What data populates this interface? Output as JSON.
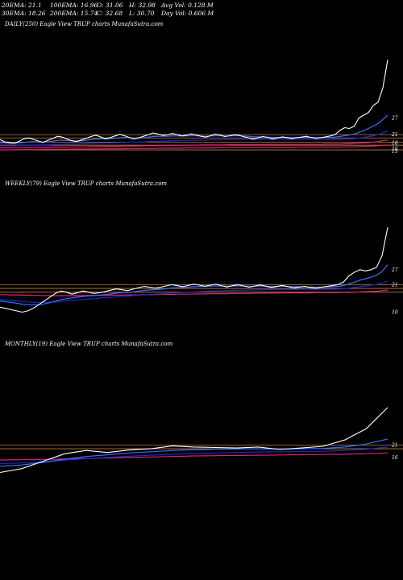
{
  "header": {
    "ema20": "20EMA: 21.1",
    "ema100": "100EMA: 16.96",
    "open": "O: 31.06",
    "high": "H: 32.98",
    "avgvol": "Avg Vol: 0.128  M",
    "ema30": "30EMA: 18.26",
    "ema200": "200EMA: 15.74",
    "close": "C: 32.68",
    "low": "L: 30.70",
    "dayvol": "Day Vol: 0.606  M"
  },
  "colors": {
    "background": "#000000",
    "price": "#ffffff",
    "ema_blue": "#3b6cff",
    "ema_dark_blue": "#1a2bc8",
    "ema_red": "#e0207a",
    "support_line": "#c08040",
    "text": "#ffffff"
  },
  "chart_data": [
    {
      "type": "line",
      "title": "DAILY(250) Eagle  View  TRUP charts MunafaSutra.com",
      "price_labels": [
        "27",
        "21",
        "18",
        "16",
        "15"
      ],
      "price_range": [
        10,
        55
      ],
      "support_levels": [
        15.5,
        17.2,
        18.3,
        19.8,
        21.0
      ],
      "series": [
        {
          "values": [
            19.2,
            18.4,
            18.1,
            17.9,
            18.6,
            19.5,
            19.8,
            19.3,
            18.7,
            18.2,
            18.9,
            19.6,
            20.4,
            20.1,
            19.4,
            18.8,
            18.5,
            19.1,
            19.7,
            20.3,
            20.8,
            20.2,
            19.6,
            19.9,
            20.5,
            21.1,
            20.6,
            20.0,
            19.4,
            19.8,
            20.4,
            21.0,
            21.6,
            21.2,
            20.7,
            20.9,
            21.4,
            21.0,
            20.5,
            20.8,
            21.3,
            20.9,
            20.4,
            20.1,
            20.6,
            21.2,
            20.8,
            20.3,
            20.6,
            21.0,
            20.7,
            20.2,
            19.8,
            19.4,
            19.9,
            20.3,
            19.9,
            19.5,
            19.8,
            20.2,
            19.9,
            19.6,
            19.9,
            20.1,
            20.4,
            20.0,
            19.7,
            19.9,
            20.2,
            20.5,
            21.0,
            22.5,
            23.5,
            23.2,
            24.0,
            27.0,
            28.0,
            29.0,
            31.5,
            32.7,
            38.0,
            48.0
          ]
        },
        {
          "values": [
            18.0,
            18.0,
            17.9,
            17.9,
            18.0,
            18.2,
            18.4,
            18.5,
            18.4,
            18.3,
            18.4,
            18.6,
            18.9,
            19.0,
            18.9,
            18.8,
            18.7,
            18.8,
            19.0,
            19.2,
            19.4,
            19.5,
            19.4,
            19.5,
            19.7,
            19.9,
            20.0,
            19.9,
            19.8,
            19.8,
            19.9,
            20.1,
            20.3,
            20.4,
            20.4,
            20.4,
            20.5,
            20.5,
            20.5,
            20.5,
            20.6,
            20.6,
            20.5,
            20.4,
            20.5,
            20.6,
            20.6,
            20.5,
            20.5,
            20.6,
            20.6,
            20.5,
            20.4,
            20.2,
            20.2,
            20.2,
            20.1,
            20.0,
            20.0,
            20.0,
            20.0,
            19.9,
            19.9,
            19.9,
            20.0,
            20.0,
            19.9,
            19.9,
            20.0,
            20.0,
            20.1,
            20.3,
            20.6,
            20.9,
            21.2,
            21.8,
            22.5,
            23.2,
            24.1,
            25.0,
            26.5,
            28.0
          ]
        },
        {
          "values": [
            17.0,
            17.0,
            17.0,
            17.0,
            17.1,
            17.1,
            17.2,
            17.2,
            17.3,
            17.3,
            17.3,
            17.4,
            17.5,
            17.5,
            17.6,
            17.6,
            17.6,
            17.7,
            17.7,
            17.8,
            17.9,
            17.9,
            18.0,
            18.0,
            18.1,
            18.2,
            18.2,
            18.3,
            18.3,
            18.3,
            18.4,
            18.5,
            18.6,
            18.6,
            18.7,
            18.7,
            18.8,
            18.8,
            18.9,
            18.9,
            19.0,
            19.0,
            19.0,
            19.0,
            19.1,
            19.1,
            19.1,
            19.2,
            19.2,
            19.2,
            19.2,
            19.2,
            19.2,
            19.2,
            19.2,
            19.2,
            19.2,
            19.2,
            19.2,
            19.2,
            19.2,
            19.2,
            19.2,
            19.2,
            19.2,
            19.2,
            19.2,
            19.2,
            19.2,
            19.2,
            19.3,
            19.3,
            19.4,
            19.5,
            19.6,
            19.8,
            20.0,
            20.3,
            20.6,
            21.0,
            21.6,
            22.3
          ]
        },
        {
          "values": [
            16.2,
            16.2,
            16.2,
            16.3,
            16.3,
            16.3,
            16.3,
            16.4,
            16.4,
            16.4,
            16.4,
            16.5,
            16.5,
            16.5,
            16.5,
            16.6,
            16.6,
            16.6,
            16.6,
            16.7,
            16.7,
            16.7,
            16.8,
            16.8,
            16.8,
            16.8,
            16.9,
            16.9,
            16.9,
            16.9,
            17.0,
            17.0,
            17.0,
            17.0,
            17.1,
            17.1,
            17.1,
            17.1,
            17.2,
            17.2,
            17.2,
            17.2,
            17.3,
            17.3,
            17.3,
            17.3,
            17.3,
            17.3,
            17.4,
            17.4,
            17.4,
            17.4,
            17.4,
            17.4,
            17.4,
            17.4,
            17.5,
            17.5,
            17.5,
            17.5,
            17.5,
            17.5,
            17.5,
            17.5,
            17.5,
            17.5,
            17.5,
            17.5,
            17.6,
            17.6,
            17.6,
            17.6,
            17.7,
            17.7,
            17.8,
            17.9,
            18.0,
            18.1,
            18.3,
            18.5,
            18.8,
            19.1
          ]
        },
        {
          "values": [
            15.5,
            15.5,
            15.5,
            15.6,
            15.6,
            15.6,
            15.6,
            15.6,
            15.6,
            15.7,
            15.7,
            15.7,
            15.7,
            15.7,
            15.7,
            15.8,
            15.8,
            15.8,
            15.8,
            15.8,
            15.8,
            15.9,
            15.9,
            15.9,
            15.9,
            15.9,
            15.9,
            16.0,
            16.0,
            16.0,
            16.0,
            16.0,
            16.0,
            16.1,
            16.1,
            16.1,
            16.1,
            16.1,
            16.1,
            16.2,
            16.2,
            16.2,
            16.2,
            16.2,
            16.2,
            16.2,
            16.3,
            16.3,
            16.3,
            16.3,
            16.3,
            16.3,
            16.3,
            16.3,
            16.4,
            16.4,
            16.4,
            16.4,
            16.4,
            16.4,
            16.4,
            16.4,
            16.4,
            16.5,
            16.5,
            16.5,
            16.5,
            16.5,
            16.5,
            16.5,
            16.5,
            16.5,
            16.6,
            16.6,
            16.6,
            16.7,
            16.7,
            16.8,
            16.9,
            17.0,
            17.1,
            17.3
          ]
        }
      ]
    },
    {
      "type": "line",
      "title": "WEEKLY(79) Eagle  View  TRUP charts MunafaSutra.com",
      "price_labels": [
        "27",
        "21",
        "10"
      ],
      "price_range": [
        5,
        55
      ],
      "support_levels": [
        18.0,
        19.5,
        21.0
      ],
      "series": [
        {
          "values": [
            12.0,
            11.5,
            11.0,
            10.5,
            10.0,
            10.5,
            11.5,
            13.0,
            14.5,
            16.0,
            17.5,
            18.5,
            18.0,
            17.2,
            17.8,
            18.5,
            18.0,
            17.5,
            17.8,
            18.3,
            18.8,
            19.3,
            19.0,
            18.6,
            19.2,
            19.8,
            20.3,
            20.0,
            19.6,
            20.0,
            20.5,
            21.0,
            20.6,
            20.2,
            20.7,
            21.2,
            20.8,
            20.4,
            20.8,
            21.2,
            20.6,
            20.1,
            20.6,
            21.0,
            20.5,
            20.0,
            20.5,
            20.9,
            20.4,
            19.9,
            20.3,
            20.7,
            20.2,
            19.7,
            20.0,
            20.3,
            19.9,
            19.6,
            20.0,
            20.3,
            20.6,
            21.0,
            22.0,
            24.5,
            26.0,
            27.0,
            26.5,
            27.0,
            28.0,
            32.7,
            44.0
          ]
        },
        {
          "values": [
            14.5,
            14.2,
            13.9,
            13.6,
            13.2,
            13.0,
            12.9,
            13.0,
            13.3,
            13.8,
            14.4,
            15.0,
            15.4,
            15.7,
            16.0,
            16.3,
            16.5,
            16.6,
            16.8,
            17.0,
            17.3,
            17.6,
            17.8,
            17.9,
            18.1,
            18.4,
            18.7,
            18.9,
            19.0,
            19.2,
            19.4,
            19.7,
            19.8,
            19.9,
            20.0,
            20.2,
            20.3,
            20.3,
            20.4,
            20.5,
            20.5,
            20.4,
            20.5,
            20.5,
            20.5,
            20.4,
            20.4,
            20.5,
            20.4,
            20.3,
            20.3,
            20.4,
            20.3,
            20.2,
            20.2,
            20.2,
            20.1,
            20.0,
            20.0,
            20.1,
            20.2,
            20.3,
            20.6,
            21.3,
            22.0,
            22.8,
            23.4,
            24.0,
            24.8,
            26.3,
            29.0
          ]
        },
        {
          "values": [
            15.0,
            14.9,
            14.7,
            14.5,
            14.3,
            14.1,
            14.0,
            13.9,
            13.9,
            14.0,
            14.1,
            14.3,
            14.5,
            14.7,
            14.9,
            15.1,
            15.3,
            15.4,
            15.6,
            15.8,
            15.9,
            16.1,
            16.3,
            16.4,
            16.6,
            16.8,
            16.9,
            17.1,
            17.2,
            17.3,
            17.5,
            17.6,
            17.8,
            17.9,
            18.0,
            18.1,
            18.2,
            18.3,
            18.4,
            18.5,
            18.6,
            18.6,
            18.7,
            18.8,
            18.8,
            18.9,
            18.9,
            19.0,
            19.0,
            19.0,
            19.1,
            19.1,
            19.1,
            19.1,
            19.1,
            19.2,
            19.2,
            19.2,
            19.2,
            19.2,
            19.2,
            19.3,
            19.4,
            19.6,
            19.9,
            20.2,
            20.5,
            20.8,
            21.1,
            21.6,
            22.5
          ]
        },
        {
          "values": [
            17.0,
            17.0,
            16.9,
            16.9,
            16.8,
            16.8,
            16.7,
            16.7,
            16.6,
            16.6,
            16.6,
            16.6,
            16.6,
            16.6,
            16.6,
            16.6,
            16.7,
            16.7,
            16.7,
            16.7,
            16.8,
            16.8,
            16.8,
            16.9,
            16.9,
            16.9,
            17.0,
            17.0,
            17.0,
            17.1,
            17.1,
            17.1,
            17.2,
            17.2,
            17.2,
            17.3,
            17.3,
            17.3,
            17.4,
            17.4,
            17.4,
            17.4,
            17.5,
            17.5,
            17.5,
            17.5,
            17.6,
            17.6,
            17.6,
            17.6,
            17.6,
            17.7,
            17.7,
            17.7,
            17.7,
            17.7,
            17.7,
            17.8,
            17.8,
            17.8,
            17.8,
            17.8,
            17.9,
            17.9,
            18.0,
            18.1,
            18.2,
            18.3,
            18.4,
            18.6,
            18.9
          ]
        }
      ]
    },
    {
      "type": "line",
      "title": "MONTHLY(19) Eagle  View  TRUP charts MunafaSutra.com",
      "price_labels": [
        "21",
        "16"
      ],
      "price_range": [
        5,
        55
      ],
      "support_levels": [
        19.5,
        21.0
      ],
      "series": [
        {
          "values": [
            10.0,
            11.5,
            14.5,
            17.5,
            18.8,
            18.0,
            19.0,
            19.5,
            20.6,
            20.2,
            20.0,
            19.8,
            20.2,
            19.2,
            19.8,
            20.5,
            23.0,
            27.5,
            36.0
          ]
        },
        {
          "values": [
            12.5,
            13.0,
            14.0,
            15.3,
            16.4,
            17.1,
            17.8,
            18.3,
            18.8,
            19.1,
            19.3,
            19.4,
            19.5,
            19.4,
            19.5,
            19.6,
            20.2,
            21.4,
            23.4
          ]
        },
        {
          "values": [
            13.5,
            13.8,
            14.3,
            14.9,
            15.5,
            16.0,
            16.5,
            16.9,
            17.3,
            17.6,
            17.8,
            18.0,
            18.2,
            18.3,
            18.4,
            18.5,
            18.8,
            19.3,
            20.2
          ]
        },
        {
          "values": [
            15.0,
            15.1,
            15.2,
            15.4,
            15.6,
            15.8,
            16.0,
            16.2,
            16.4,
            16.6,
            16.7,
            16.8,
            16.9,
            17.0,
            17.1,
            17.2,
            17.3,
            17.5,
            17.8
          ]
        }
      ]
    }
  ]
}
